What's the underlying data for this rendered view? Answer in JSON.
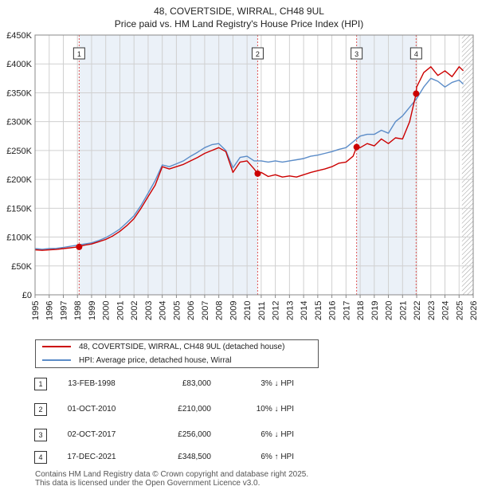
{
  "title_line1": "48, COVERTSIDE, WIRRAL, CH48 9UL",
  "title_line2": "Price paid vs. HM Land Registry's House Price Index (HPI)",
  "chart_data": {
    "type": "line",
    "title": "48, COVERTSIDE, WIRRAL, CH48 9UL - Price paid vs. HM Land Registry's House Price Index (HPI)",
    "xlabel": "",
    "ylabel": "",
    "xlim": [
      1995,
      2026
    ],
    "ylim": [
      0,
      450000
    ],
    "x_ticks": [
      "1995",
      "1996",
      "1997",
      "1998",
      "1999",
      "2000",
      "2001",
      "2002",
      "2003",
      "2004",
      "2005",
      "2006",
      "2007",
      "2008",
      "2009",
      "2010",
      "2011",
      "2012",
      "2013",
      "2014",
      "2015",
      "2016",
      "2017",
      "2018",
      "2019",
      "2020",
      "2021",
      "2022",
      "2023",
      "2024",
      "2025",
      "2026"
    ],
    "y_ticks": [
      {
        "value": 0,
        "label": "£0"
      },
      {
        "value": 50000,
        "label": "£50K"
      },
      {
        "value": 100000,
        "label": "£100K"
      },
      {
        "value": 150000,
        "label": "£150K"
      },
      {
        "value": 200000,
        "label": "£200K"
      },
      {
        "value": 250000,
        "label": "£250K"
      },
      {
        "value": 300000,
        "label": "£300K"
      },
      {
        "value": 350000,
        "label": "£350K"
      },
      {
        "value": 400000,
        "label": "£400K"
      },
      {
        "value": 450000,
        "label": "£450K"
      }
    ],
    "grid": true,
    "legend_position": "below",
    "hatched_future_from": 2025.2,
    "series": [
      {
        "name": "48, COVERTSIDE, WIRRAL, CH48 9UL (detached house)",
        "color": "#cc0000",
        "x": [
          1995.0,
          1995.5,
          1996.0,
          1996.5,
          1997.0,
          1997.5,
          1998.0,
          1998.5,
          1999.0,
          1999.5,
          2000.0,
          2000.5,
          2001.0,
          2001.5,
          2002.0,
          2002.5,
          2003.0,
          2003.5,
          2004.0,
          2004.5,
          2005.0,
          2005.5,
          2006.0,
          2006.5,
          2007.0,
          2007.5,
          2008.0,
          2008.5,
          2009.0,
          2009.5,
          2010.0,
          2010.5,
          2010.75,
          2011.0,
          2011.5,
          2012.0,
          2012.5,
          2013.0,
          2013.5,
          2014.0,
          2014.5,
          2015.0,
          2015.5,
          2016.0,
          2016.5,
          2017.0,
          2017.5,
          2017.75,
          2018.0,
          2018.5,
          2019.0,
          2019.5,
          2020.0,
          2020.5,
          2021.0,
          2021.5,
          2021.96,
          2022.0,
          2022.5,
          2023.0,
          2023.5,
          2024.0,
          2024.5,
          2025.0,
          2025.3
        ],
        "values": [
          78000,
          77000,
          78000,
          78500,
          80000,
          81500,
          83000,
          86000,
          88000,
          92000,
          96000,
          102000,
          110000,
          120000,
          132000,
          150000,
          170000,
          190000,
          222000,
          218000,
          222000,
          226000,
          232000,
          238000,
          245000,
          250000,
          255000,
          248000,
          212000,
          230000,
          232000,
          218000,
          210000,
          212000,
          205000,
          208000,
          204000,
          206000,
          204000,
          208000,
          212000,
          215000,
          218000,
          222000,
          228000,
          230000,
          240000,
          256000,
          255000,
          262000,
          258000,
          270000,
          262000,
          272000,
          270000,
          300000,
          348500,
          360000,
          385000,
          395000,
          380000,
          388000,
          378000,
          395000,
          388000
        ]
      },
      {
        "name": "HPI: Average price, detached house, Wirral",
        "color": "#5b8cc8",
        "x": [
          1995.0,
          1995.5,
          1996.0,
          1996.5,
          1997.0,
          1997.5,
          1998.0,
          1998.5,
          1999.0,
          1999.5,
          2000.0,
          2000.5,
          2001.0,
          2001.5,
          2002.0,
          2002.5,
          2003.0,
          2003.5,
          2004.0,
          2004.5,
          2005.0,
          2005.5,
          2006.0,
          2006.5,
          2007.0,
          2007.5,
          2008.0,
          2008.5,
          2009.0,
          2009.5,
          2010.0,
          2010.5,
          2011.0,
          2011.5,
          2012.0,
          2012.5,
          2013.0,
          2013.5,
          2014.0,
          2014.5,
          2015.0,
          2015.5,
          2016.0,
          2016.5,
          2017.0,
          2017.5,
          2018.0,
          2018.5,
          2019.0,
          2019.5,
          2020.0,
          2020.5,
          2021.0,
          2021.5,
          2022.0,
          2022.5,
          2023.0,
          2023.5,
          2024.0,
          2024.5,
          2025.0,
          2025.3
        ],
        "values": [
          80000,
          79000,
          80000,
          80500,
          82000,
          84000,
          86000,
          88000,
          90000,
          94000,
          99000,
          106000,
          114000,
          125000,
          137000,
          155000,
          176000,
          198000,
          225000,
          222000,
          227000,
          232000,
          240000,
          247000,
          255000,
          260000,
          262000,
          250000,
          220000,
          238000,
          240000,
          232000,
          232000,
          230000,
          232000,
          230000,
          232000,
          234000,
          236000,
          240000,
          242000,
          245000,
          248000,
          252000,
          255000,
          265000,
          275000,
          278000,
          278000,
          285000,
          280000,
          300000,
          310000,
          325000,
          340000,
          360000,
          375000,
          370000,
          360000,
          368000,
          372000,
          365000
        ]
      }
    ],
    "sale_markers": [
      {
        "label": "1",
        "x": 1998.12,
        "value": 83000
      },
      {
        "label": "2",
        "x": 2010.75,
        "value": 210000
      },
      {
        "label": "3",
        "x": 2017.75,
        "value": 256000
      },
      {
        "label": "4",
        "x": 2021.96,
        "value": 348500
      }
    ]
  },
  "legend": {
    "red_label": "48, COVERTSIDE, WIRRAL, CH48 9UL (detached house)",
    "blue_label": "HPI: Average price, detached house, Wirral"
  },
  "sales": [
    {
      "num": "1",
      "date": "13-FEB-1998",
      "price": "£83,000",
      "hpi": "3% ↓ HPI"
    },
    {
      "num": "2",
      "date": "01-OCT-2010",
      "price": "£210,000",
      "hpi": "10% ↓ HPI"
    },
    {
      "num": "3",
      "date": "02-OCT-2017",
      "price": "£256,000",
      "hpi": "6% ↓ HPI"
    },
    {
      "num": "4",
      "date": "17-DEC-2021",
      "price": "£348,500",
      "hpi": "6% ↑ HPI"
    }
  ],
  "footer_line1": "Contains HM Land Registry data © Crown copyright and database right 2025.",
  "footer_line2": "This data is licensed under the Open Government Licence v3.0."
}
